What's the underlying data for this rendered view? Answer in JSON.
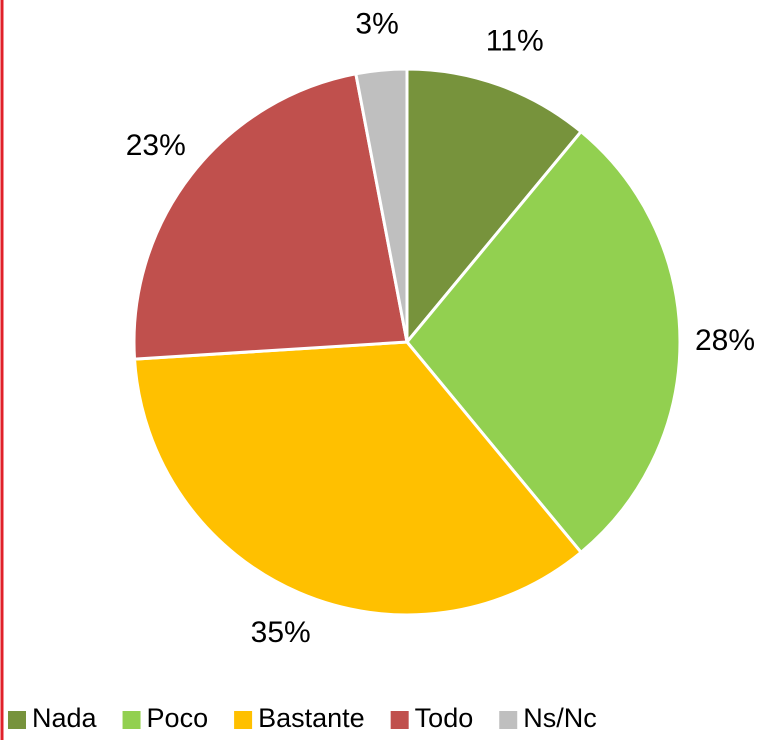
{
  "chart_data": {
    "type": "pie",
    "categories": [
      "Nada",
      "Poco",
      "Bastante",
      "Todo",
      "Ns/Nc"
    ],
    "values": [
      11,
      28,
      35,
      23,
      3
    ],
    "value_labels": [
      "11%",
      "28%",
      "35%",
      "23%",
      "3%"
    ],
    "colors": [
      "#77933c",
      "#92d050",
      "#ffc000",
      "#c0504d",
      "#bfbfbf"
    ],
    "legend": "bottom"
  }
}
